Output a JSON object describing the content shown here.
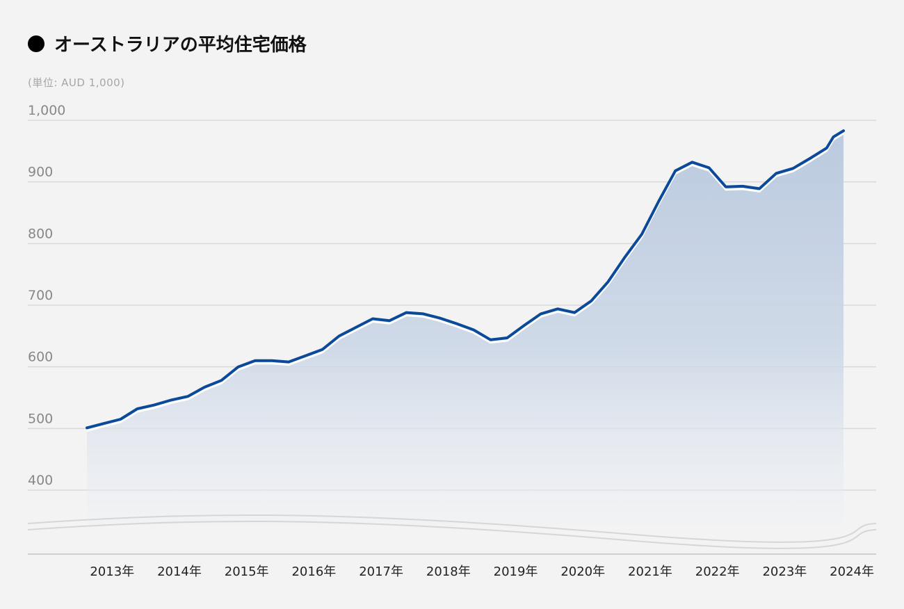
{
  "title": "オーストラリアの平均住宅価格",
  "unit_label": "(単位: AUD 1,000)",
  "colors": {
    "line": "#0b4a9a",
    "fill": "#b9c8de",
    "background": "#f3f3f3"
  },
  "chart_data": {
    "type": "area",
    "title": "オーストラリアの平均住宅価格",
    "ylabel": "(単位: AUD 1,000)",
    "xlabel": "",
    "ylim": [
      400,
      1000
    ],
    "y_ticks": [
      {
        "value": 1000,
        "label": "1,000"
      },
      {
        "value": 900,
        "label": "900"
      },
      {
        "value": 800,
        "label": "800"
      },
      {
        "value": 700,
        "label": "700"
      },
      {
        "value": 600,
        "label": "600"
      },
      {
        "value": 500,
        "label": "500"
      },
      {
        "value": 400,
        "label": "400"
      }
    ],
    "axis_break": true,
    "grid": true,
    "legend": "none",
    "x_ticks": [
      {
        "value": 2013.375,
        "label": "2013年"
      },
      {
        "value": 2014.375,
        "label": "2014年"
      },
      {
        "value": 2015.375,
        "label": "2015年"
      },
      {
        "value": 2016.375,
        "label": "2016年"
      },
      {
        "value": 2017.375,
        "label": "2017年"
      },
      {
        "value": 2018.375,
        "label": "2018年"
      },
      {
        "value": 2019.375,
        "label": "2019年"
      },
      {
        "value": 2020.375,
        "label": "2020年"
      },
      {
        "value": 2021.375,
        "label": "2021年"
      },
      {
        "value": 2022.375,
        "label": "2022年"
      },
      {
        "value": 2023.375,
        "label": "2023年"
      },
      {
        "value": 2024.375,
        "label": "2024年"
      }
    ],
    "x": [
      2013.0,
      2013.25,
      2013.5,
      2013.75,
      2014.0,
      2014.25,
      2014.5,
      2014.75,
      2015.0,
      2015.25,
      2015.5,
      2015.75,
      2016.0,
      2016.25,
      2016.5,
      2016.75,
      2017.0,
      2017.25,
      2017.5,
      2017.75,
      2018.0,
      2018.25,
      2018.5,
      2018.75,
      2019.0,
      2019.25,
      2019.5,
      2019.75,
      2020.0,
      2020.25,
      2020.5,
      2020.75,
      2021.0,
      2021.25,
      2021.5,
      2021.75,
      2022.0,
      2022.25,
      2022.5,
      2022.75,
      2023.0,
      2023.25,
      2023.5,
      2023.75,
      2024.0,
      2024.1,
      2024.25
    ],
    "values": [
      501,
      508,
      515,
      532,
      538,
      546,
      552,
      567,
      578,
      600,
      610,
      610,
      608,
      618,
      628,
      650,
      664,
      678,
      675,
      688,
      686,
      679,
      670,
      660,
      644,
      647,
      667,
      686,
      694,
      688,
      707,
      738,
      778,
      815,
      868,
      918,
      932,
      923,
      892,
      893,
      889,
      914,
      922,
      938,
      955,
      973,
      983
    ]
  }
}
